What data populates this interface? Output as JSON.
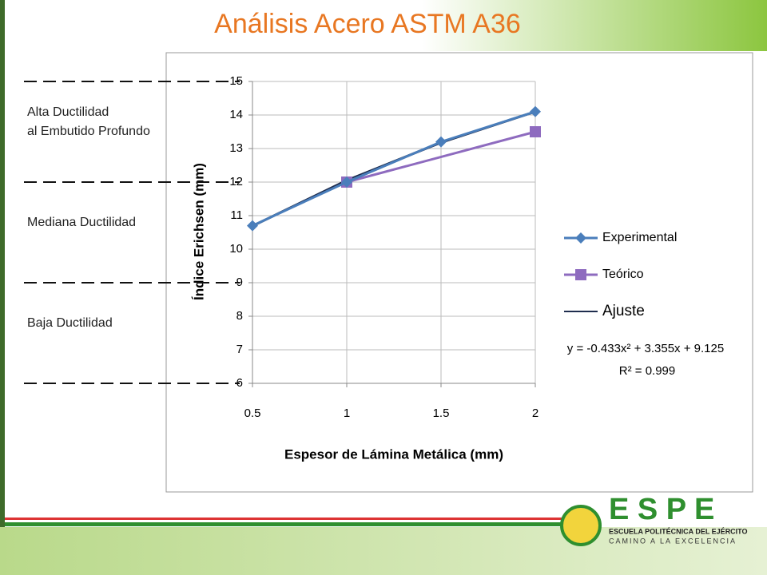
{
  "title": "Análisis Acero ASTM A36",
  "chart_data": {
    "type": "line",
    "x_label": "Espesor de Lámina Metálica (mm)",
    "y_label": "Índice Erichsen (mm)",
    "xlim": [
      0.5,
      2
    ],
    "xticks": [
      0.5,
      1,
      1.5,
      2
    ],
    "ylim": [
      6,
      15
    ],
    "yticks": [
      6,
      7,
      8,
      9,
      10,
      11,
      12,
      13,
      14,
      15
    ],
    "grid": true,
    "series": [
      {
        "name": "Experimental",
        "color": "#4a7ebb",
        "marker": "diamond",
        "x": [
          0.5,
          1,
          1.5,
          2
        ],
        "values": [
          10.7,
          12,
          13.2,
          14.1
        ]
      },
      {
        "name": "Teórico",
        "color": "#8e6bbf",
        "marker": "square",
        "x": [
          1,
          2
        ],
        "values": [
          12,
          13.5
        ]
      },
      {
        "name": "Ajuste",
        "color": "#1f2d4e",
        "marker": null,
        "x": [
          0.5,
          1,
          1.5,
          2
        ],
        "values": [
          10.69,
          12.05,
          13.18,
          14.1
        ]
      }
    ],
    "annotations": [
      "y = -0.433x² + 3.355x + 9.125",
      "R² = 0.999"
    ],
    "zones": [
      {
        "label": [
          "Alta Ductilidad",
          "al Embutido Profundo"
        ],
        "from": 12,
        "to": 15
      },
      {
        "label": [
          "Mediana Ductilidad"
        ],
        "from": 9,
        "to": 12
      },
      {
        "label": [
          "Baja Ductilidad"
        ],
        "from": 6,
        "to": 9
      }
    ]
  },
  "footer": {
    "brand": "E S P E",
    "school": "ESCUELA POLITÉCNICA DEL EJÉRCITO",
    "motto": "CAMINO A LA EXCELENCIA"
  }
}
